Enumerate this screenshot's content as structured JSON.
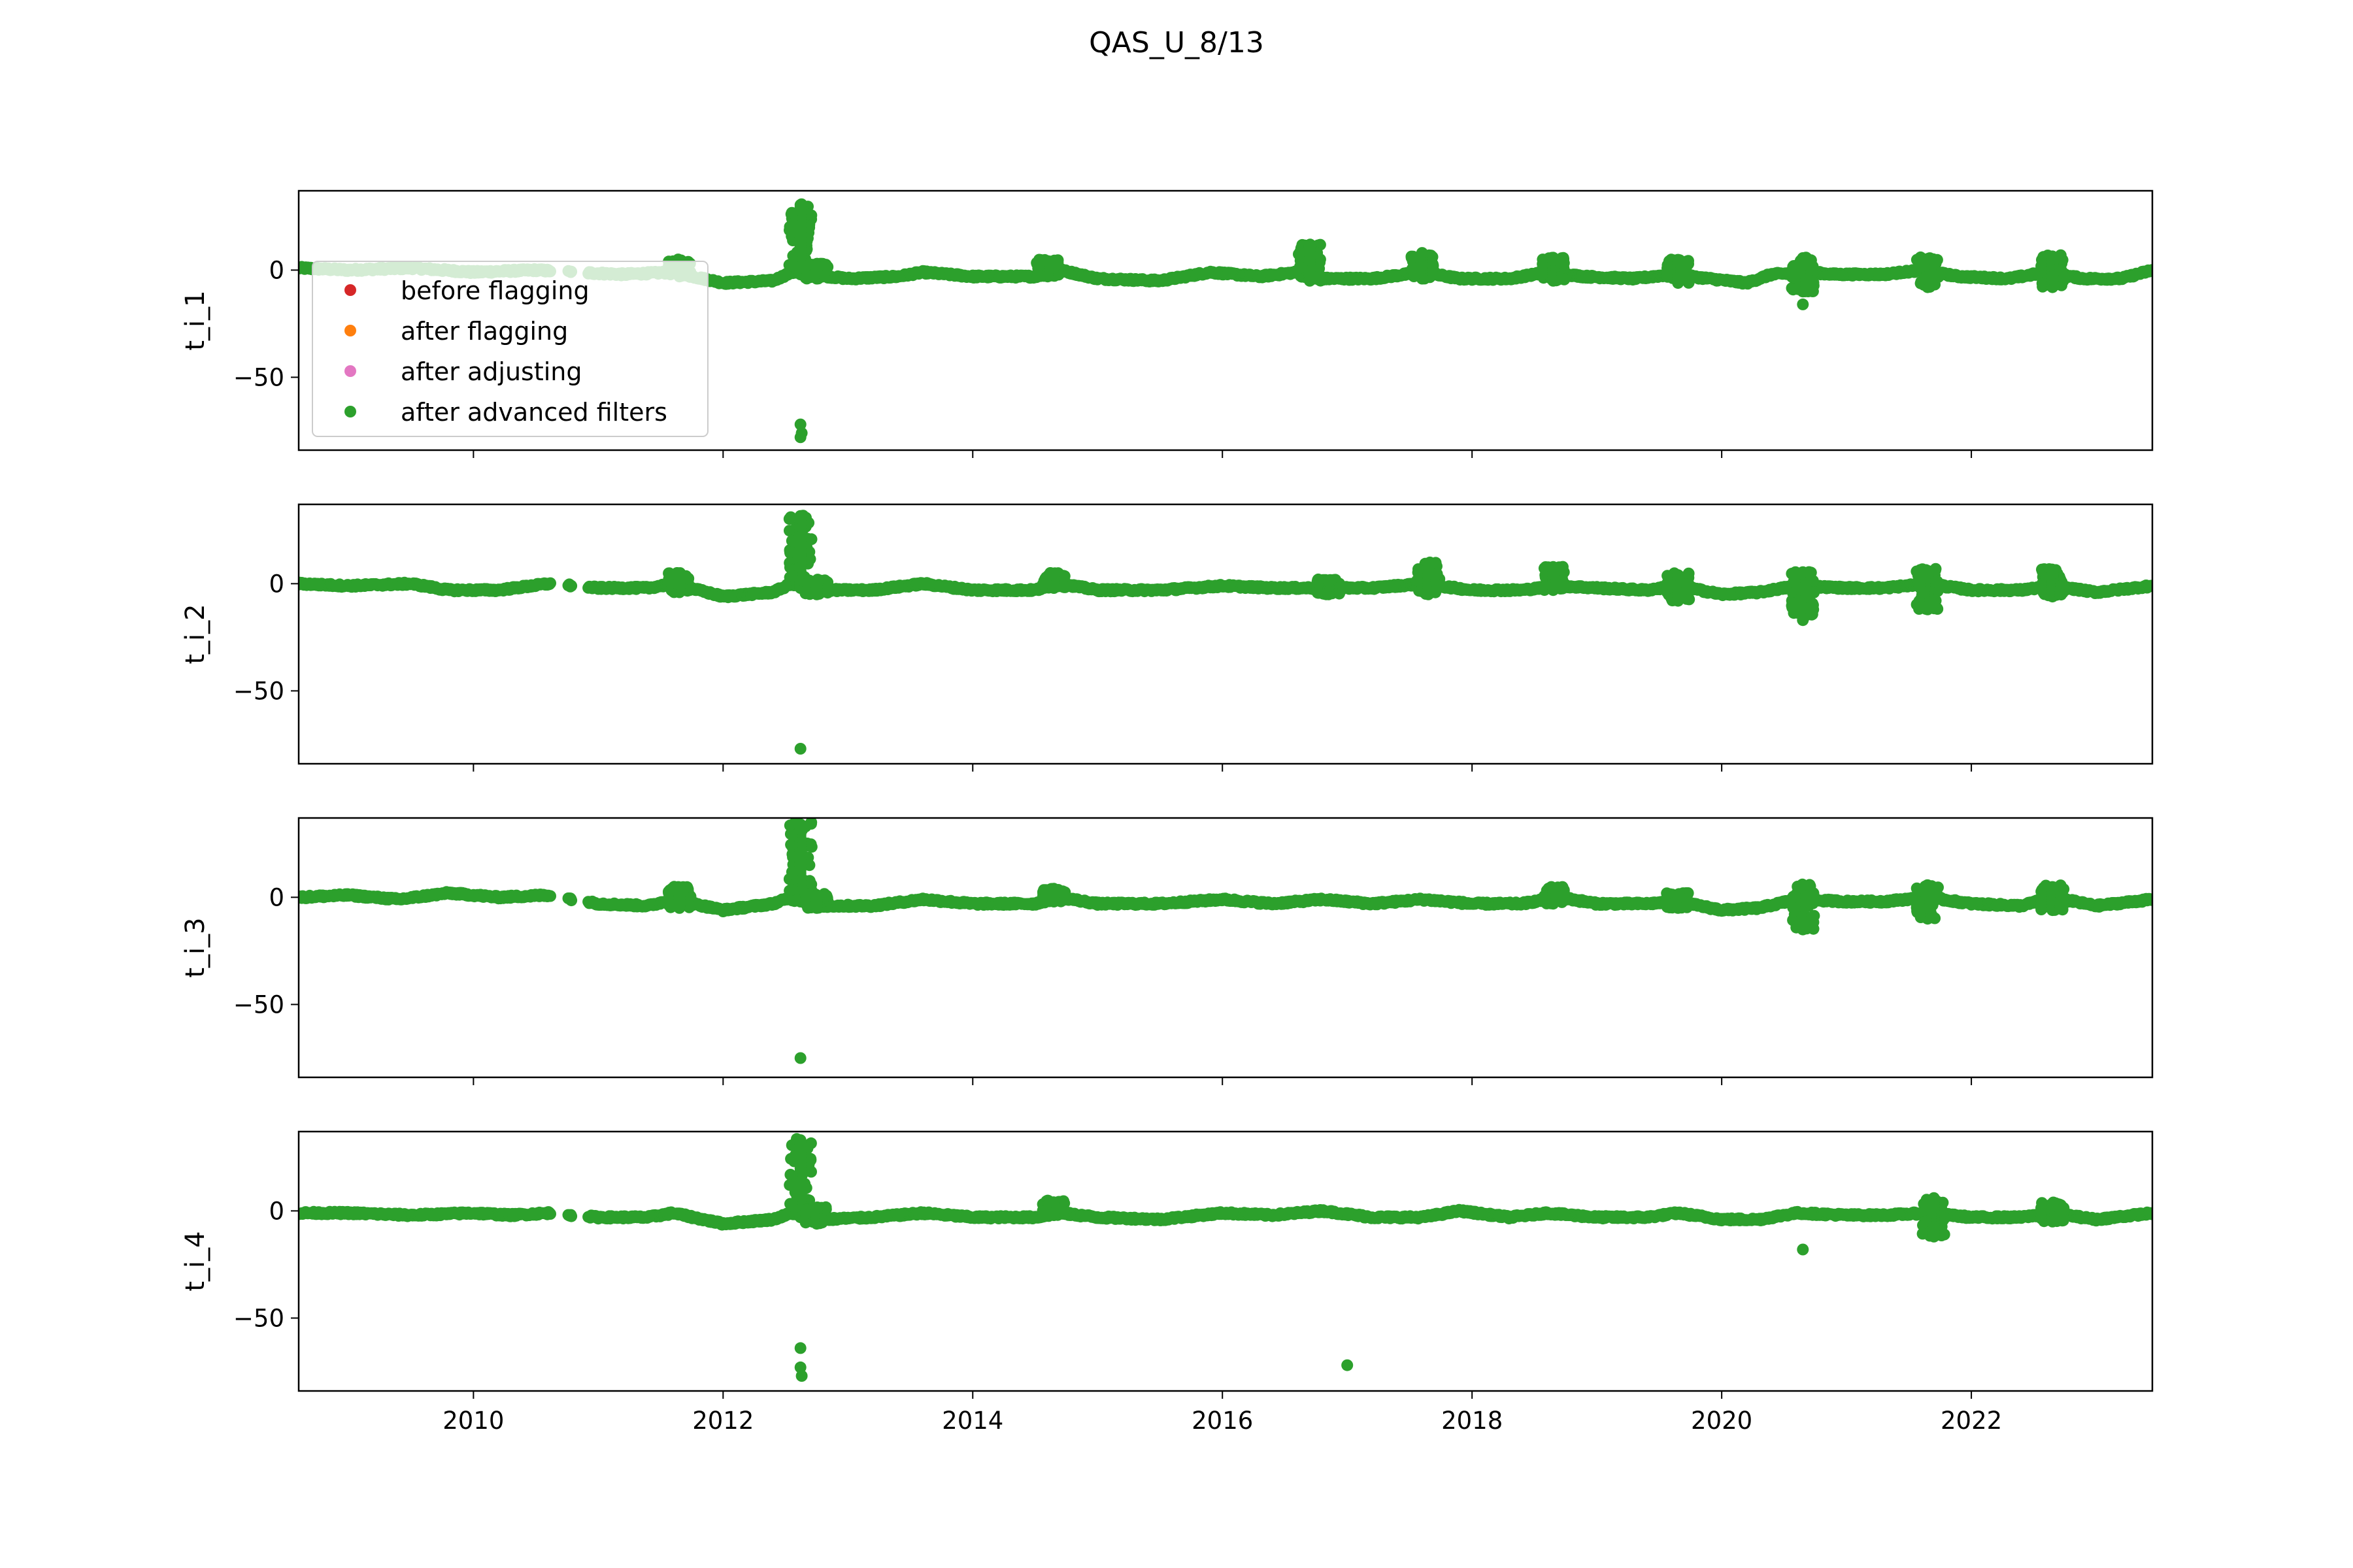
{
  "figure": {
    "title": "QAS_U_8/13"
  },
  "legend": {
    "placement": "upper-left of first panel",
    "entries": [
      {
        "label": "before flagging",
        "color": "#d62728"
      },
      {
        "label": "after flagging",
        "color": "#ff7f0e"
      },
      {
        "label": "after adjusting",
        "color": "#e377c2"
      },
      {
        "label": "after advanced filters",
        "color": "#2ca02c"
      }
    ]
  },
  "chart_data": [
    {
      "type": "scatter",
      "ylabel": "t_i_1",
      "xlim": [
        2008.6,
        2023.45
      ],
      "ylim": [
        -84,
        37
      ],
      "yticks": [
        "0",
        "−50"
      ],
      "series": [
        {
          "name": "after advanced filters",
          "color": "#2ca02c",
          "trend": [
            [
              2008.6,
              1
            ],
            [
              2009.0,
              0
            ],
            [
              2009.5,
              1
            ],
            [
              2010.0,
              -1
            ],
            [
              2010.5,
              0
            ],
            [
              2010.8,
              -1
            ],
            [
              2011.2,
              -2
            ],
            [
              2011.6,
              -1
            ],
            [
              2012.0,
              -6
            ],
            [
              2012.4,
              -5
            ],
            [
              2012.55,
              -1
            ],
            [
              2012.7,
              -2
            ],
            [
              2013.0,
              -4
            ],
            [
              2013.4,
              -3
            ],
            [
              2013.6,
              -1
            ],
            [
              2014.0,
              -3
            ],
            [
              2014.5,
              -3
            ],
            [
              2014.7,
              0
            ],
            [
              2015.0,
              -4
            ],
            [
              2015.5,
              -5
            ],
            [
              2015.9,
              -1
            ],
            [
              2016.3,
              -3
            ],
            [
              2016.6,
              -1
            ],
            [
              2016.8,
              -4
            ],
            [
              2017.2,
              -4
            ],
            [
              2017.6,
              -1
            ],
            [
              2017.9,
              -4
            ],
            [
              2018.3,
              -4
            ],
            [
              2018.6,
              -1
            ],
            [
              2018.9,
              -3
            ],
            [
              2019.3,
              -4
            ],
            [
              2019.6,
              -2
            ],
            [
              2019.9,
              -4
            ],
            [
              2020.2,
              -6
            ],
            [
              2020.4,
              -2
            ],
            [
              2020.7,
              -1
            ],
            [
              2020.9,
              -2
            ],
            [
              2021.3,
              -2
            ],
            [
              2021.6,
              0
            ],
            [
              2021.9,
              -3
            ],
            [
              2022.3,
              -4
            ],
            [
              2022.6,
              -1
            ],
            [
              2022.9,
              -4
            ],
            [
              2023.2,
              -4
            ],
            [
              2023.45,
              0
            ]
          ],
          "bursts": [
            [
              2011.65,
              -3,
              5
            ],
            [
              2012.62,
              -2,
              31
            ],
            [
              2012.75,
              -4,
              3
            ],
            [
              2014.6,
              -3,
              5
            ],
            [
              2016.7,
              -5,
              12
            ],
            [
              2017.6,
              -4,
              8
            ],
            [
              2018.65,
              -5,
              6
            ],
            [
              2019.65,
              -6,
              5
            ],
            [
              2020.65,
              -10,
              6
            ],
            [
              2021.65,
              -8,
              6
            ],
            [
              2022.65,
              -8,
              7
            ]
          ],
          "outliers": [
            [
              2012.62,
              -72
            ],
            [
              2012.62,
              -78
            ],
            [
              2012.63,
              -76
            ],
            [
              2020.65,
              -16
            ]
          ]
        }
      ]
    },
    {
      "type": "scatter",
      "ylabel": "t_i_2",
      "xlim": [
        2008.6,
        2023.45
      ],
      "ylim": [
        -84,
        37
      ],
      "yticks": [
        "0",
        "−50"
      ],
      "series": [
        {
          "name": "after advanced filters",
          "color": "#2ca02c",
          "trend": [
            [
              2008.6,
              0
            ],
            [
              2009.0,
              -1
            ],
            [
              2009.5,
              0
            ],
            [
              2009.8,
              -3
            ],
            [
              2010.2,
              -3
            ],
            [
              2010.6,
              0
            ],
            [
              2011.0,
              -2
            ],
            [
              2011.4,
              -2
            ],
            [
              2011.6,
              0
            ],
            [
              2012.0,
              -6
            ],
            [
              2012.4,
              -4
            ],
            [
              2012.55,
              0
            ],
            [
              2012.8,
              -3
            ],
            [
              2013.2,
              -3
            ],
            [
              2013.6,
              0
            ],
            [
              2014.0,
              -3
            ],
            [
              2014.5,
              -3
            ],
            [
              2014.7,
              0
            ],
            [
              2015.0,
              -3
            ],
            [
              2015.5,
              -3
            ],
            [
              2016.0,
              -1
            ],
            [
              2016.4,
              -2
            ],
            [
              2016.8,
              -2
            ],
            [
              2017.2,
              -2
            ],
            [
              2017.6,
              0
            ],
            [
              2018.0,
              -3
            ],
            [
              2018.4,
              -3
            ],
            [
              2018.7,
              -1
            ],
            [
              2019.0,
              -2
            ],
            [
              2019.4,
              -3
            ],
            [
              2019.65,
              -1
            ],
            [
              2020.0,
              -5
            ],
            [
              2020.3,
              -4
            ],
            [
              2020.6,
              -1
            ],
            [
              2021.0,
              -2
            ],
            [
              2021.3,
              -2
            ],
            [
              2021.65,
              0
            ],
            [
              2022.0,
              -3
            ],
            [
              2022.4,
              -3
            ],
            [
              2022.65,
              -1
            ],
            [
              2023.0,
              -4
            ],
            [
              2023.45,
              -1
            ]
          ],
          "bursts": [
            [
              2011.65,
              -4,
              5
            ],
            [
              2012.62,
              -2,
              32
            ],
            [
              2012.75,
              -5,
              2
            ],
            [
              2014.65,
              -2,
              5
            ],
            [
              2016.85,
              -5,
              2
            ],
            [
              2017.65,
              -5,
              10
            ],
            [
              2018.65,
              -3,
              8
            ],
            [
              2019.65,
              -8,
              5
            ],
            [
              2020.65,
              -15,
              6
            ],
            [
              2021.65,
              -12,
              7
            ],
            [
              2022.65,
              -6,
              7
            ]
          ],
          "outliers": [
            [
              2012.62,
              -77
            ],
            [
              2020.65,
              -17
            ]
          ]
        }
      ]
    },
    {
      "type": "scatter",
      "ylabel": "t_i_3",
      "xlim": [
        2008.6,
        2023.45
      ],
      "ylim": [
        -84,
        37
      ],
      "yticks": [
        "0",
        "−50"
      ],
      "series": [
        {
          "name": "after advanced filters",
          "color": "#2ca02c",
          "trend": [
            [
              2008.6,
              0
            ],
            [
              2009.0,
              1
            ],
            [
              2009.4,
              -1
            ],
            [
              2009.8,
              2
            ],
            [
              2010.2,
              0
            ],
            [
              2010.6,
              1
            ],
            [
              2011.0,
              -3
            ],
            [
              2011.4,
              -4
            ],
            [
              2011.6,
              -1
            ],
            [
              2012.0,
              -6
            ],
            [
              2012.4,
              -3
            ],
            [
              2012.55,
              0
            ],
            [
              2012.8,
              -4
            ],
            [
              2013.2,
              -4
            ],
            [
              2013.6,
              -1
            ],
            [
              2014.0,
              -3
            ],
            [
              2014.5,
              -3
            ],
            [
              2014.7,
              0
            ],
            [
              2015.0,
              -3
            ],
            [
              2015.5,
              -3
            ],
            [
              2016.0,
              -1
            ],
            [
              2016.4,
              -3
            ],
            [
              2016.8,
              -1
            ],
            [
              2017.2,
              -3
            ],
            [
              2017.6,
              -1
            ],
            [
              2018.0,
              -3
            ],
            [
              2018.4,
              -3
            ],
            [
              2018.7,
              0
            ],
            [
              2019.0,
              -3
            ],
            [
              2019.4,
              -3
            ],
            [
              2019.65,
              -2
            ],
            [
              2020.0,
              -6
            ],
            [
              2020.3,
              -5
            ],
            [
              2020.6,
              -1
            ],
            [
              2021.0,
              -2
            ],
            [
              2021.3,
              -2
            ],
            [
              2021.65,
              0
            ],
            [
              2022.0,
              -3
            ],
            [
              2022.4,
              -4
            ],
            [
              2022.65,
              0
            ],
            [
              2023.0,
              -4
            ],
            [
              2023.45,
              -1
            ]
          ],
          "bursts": [
            [
              2011.65,
              -5,
              5
            ],
            [
              2012.62,
              -2,
              35
            ],
            [
              2012.75,
              -5,
              2
            ],
            [
              2014.65,
              -2,
              4
            ],
            [
              2018.65,
              -3,
              5
            ],
            [
              2019.65,
              -5,
              2
            ],
            [
              2020.65,
              -15,
              6
            ],
            [
              2021.65,
              -10,
              6
            ],
            [
              2022.65,
              -6,
              6
            ]
          ],
          "outliers": [
            [
              2012.62,
              -75
            ],
            [
              2020.65,
              -15
            ]
          ]
        }
      ]
    },
    {
      "type": "scatter",
      "ylabel": "t_i_4",
      "xlabel": "",
      "xlim": [
        2008.6,
        2023.45
      ],
      "ylim": [
        -84,
        37
      ],
      "xticks": [
        "2010",
        "2012",
        "2014",
        "2016",
        "2018",
        "2020",
        "2022"
      ],
      "yticks": [
        "0",
        "−50"
      ],
      "series": [
        {
          "name": "after advanced filters",
          "color": "#2ca02c",
          "trend": [
            [
              2008.6,
              -1
            ],
            [
              2009.0,
              -1
            ],
            [
              2009.5,
              -2
            ],
            [
              2010.0,
              -1
            ],
            [
              2010.3,
              -2
            ],
            [
              2010.6,
              -1
            ],
            [
              2011.0,
              -3
            ],
            [
              2011.4,
              -3
            ],
            [
              2011.6,
              -1
            ],
            [
              2012.0,
              -6
            ],
            [
              2012.4,
              -4
            ],
            [
              2012.55,
              -1
            ],
            [
              2012.8,
              -4
            ],
            [
              2013.2,
              -3
            ],
            [
              2013.6,
              -1
            ],
            [
              2014.0,
              -3
            ],
            [
              2014.5,
              -3
            ],
            [
              2014.7,
              -1
            ],
            [
              2015.0,
              -3
            ],
            [
              2015.5,
              -4
            ],
            [
              2016.0,
              -1
            ],
            [
              2016.4,
              -2
            ],
            [
              2016.8,
              0
            ],
            [
              2017.2,
              -3
            ],
            [
              2017.6,
              -3
            ],
            [
              2017.9,
              0
            ],
            [
              2018.3,
              -3
            ],
            [
              2018.6,
              -1
            ],
            [
              2019.0,
              -3
            ],
            [
              2019.4,
              -3
            ],
            [
              2019.65,
              -1
            ],
            [
              2020.0,
              -4
            ],
            [
              2020.3,
              -4
            ],
            [
              2020.6,
              -1
            ],
            [
              2021.0,
              -2
            ],
            [
              2021.3,
              -2
            ],
            [
              2021.65,
              -1
            ],
            [
              2022.0,
              -3
            ],
            [
              2022.4,
              -3
            ],
            [
              2022.65,
              -1
            ],
            [
              2023.0,
              -4
            ],
            [
              2023.45,
              -1
            ]
          ],
          "bursts": [
            [
              2012.62,
              -3,
              34
            ],
            [
              2012.75,
              -6,
              2
            ],
            [
              2014.65,
              -2,
              5
            ],
            [
              2021.7,
              -12,
              6
            ],
            [
              2022.65,
              -5,
              4
            ]
          ],
          "outliers": [
            [
              2012.62,
              -64
            ],
            [
              2012.62,
              -73
            ],
            [
              2012.63,
              -77
            ],
            [
              2017.0,
              -72
            ],
            [
              2020.65,
              -18
            ]
          ]
        }
      ]
    }
  ]
}
